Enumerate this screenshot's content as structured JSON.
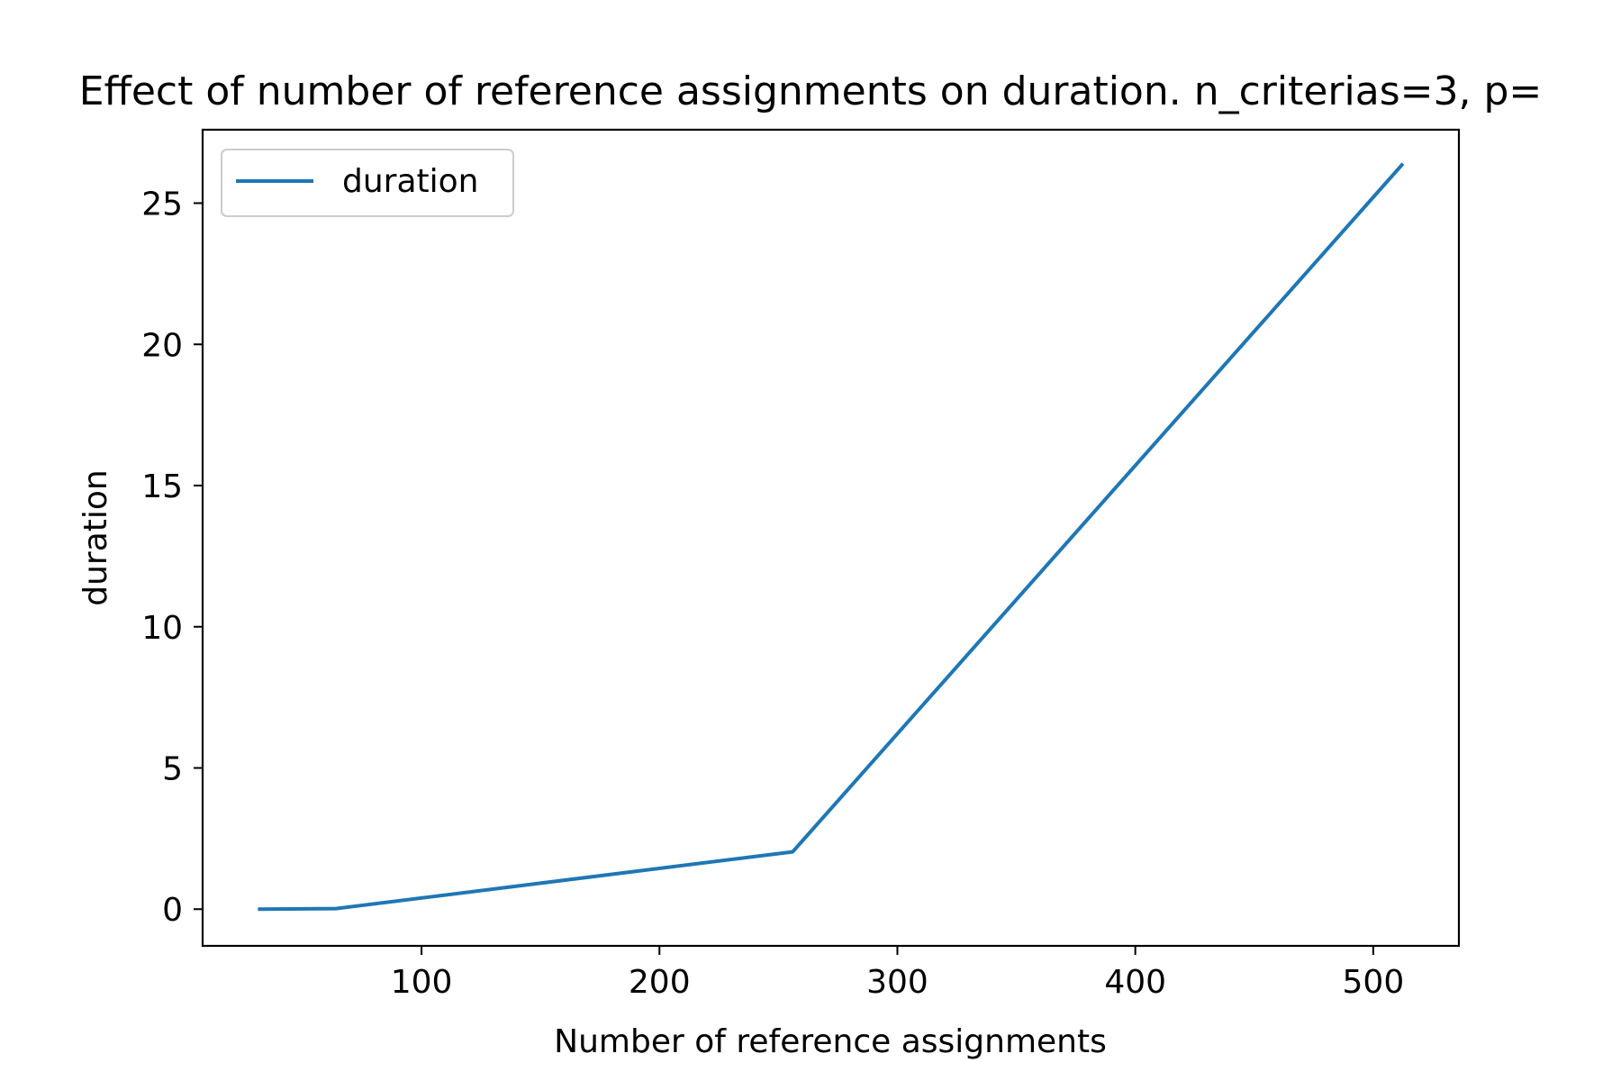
{
  "chart_data": {
    "type": "line",
    "title": "Effect of number of reference assignments on duration. n_criterias=3, p=",
    "xlabel": "Number of reference assignments",
    "ylabel": "duration",
    "xlim": [
      8,
      536
    ],
    "ylim": [
      -1.3,
      27.6
    ],
    "xticks": [
      100,
      200,
      300,
      400,
      500
    ],
    "xtick_labels": [
      "100",
      "200",
      "300",
      "400",
      "500"
    ],
    "yticks": [
      0,
      5,
      10,
      15,
      20,
      25
    ],
    "ytick_labels": [
      "0",
      "5",
      "10",
      "15",
      "20",
      "25"
    ],
    "grid": false,
    "legend_position": "upper-left",
    "series": [
      {
        "name": "duration",
        "color": "#1f77b4",
        "x": [
          32,
          64,
          256,
          512
        ],
        "y": [
          0.0,
          0.02,
          2.03,
          26.35
        ]
      }
    ]
  }
}
